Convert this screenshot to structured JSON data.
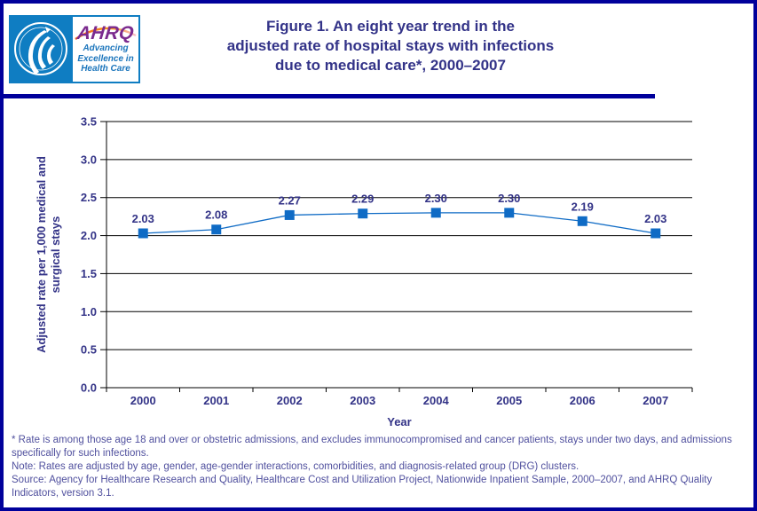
{
  "page": {
    "border_color": "#00009B"
  },
  "header": {
    "logo": {
      "hhs_name": "Department of Health and Human Services seal",
      "ahrq_text": "AHRQ",
      "tagline_line1": "Advancing",
      "tagline_line2": "Excellence in",
      "tagline_line3": "Health Care"
    },
    "title_line1": "Figure 1. An eight year trend in the",
    "title_line2": "adjusted rate of hospital stays with infections",
    "title_line3": "due to medical care*, 2000–2007"
  },
  "chart_data": {
    "type": "line",
    "categories": [
      "2000",
      "2001",
      "2002",
      "2003",
      "2004",
      "2005",
      "2006",
      "2007"
    ],
    "values": [
      2.03,
      2.08,
      2.27,
      2.29,
      2.3,
      2.3,
      2.19,
      2.03
    ],
    "data_labels": [
      "2.03",
      "2.08",
      "2.27",
      "2.29",
      "2.30",
      "2.30",
      "2.19",
      "2.03"
    ],
    "xlabel": "Year",
    "ylabel_line1": "Adjusted rate per 1,000 medical and",
    "ylabel_line2": "surgical stays",
    "ylim": [
      0,
      3.5
    ],
    "yticks": [
      "0.0",
      "0.5",
      "1.0",
      "1.5",
      "2.0",
      "2.5",
      "3.0",
      "3.5"
    ],
    "grid": true,
    "legend": "none",
    "marker": "square",
    "series_color": "#0F6BC5",
    "label_color": "#333387",
    "axis_color": "#000000"
  },
  "footnotes": {
    "star": "* Rate is among those age 18 and over or obstetric admissions, and excludes immunocompromised and cancer patients, stays under two days, and admissions specifically for such infections.",
    "note": "Note: Rates are adjusted by age, gender, age-gender interactions, comorbidities, and diagnosis-related group (DRG) clusters.",
    "source": "Source: Agency for Healthcare Research and Quality, Healthcare Cost and Utilization Project, Nationwide Inpatient Sample, 2000–2007, and AHRQ Quality Indicators, version 3.1."
  }
}
